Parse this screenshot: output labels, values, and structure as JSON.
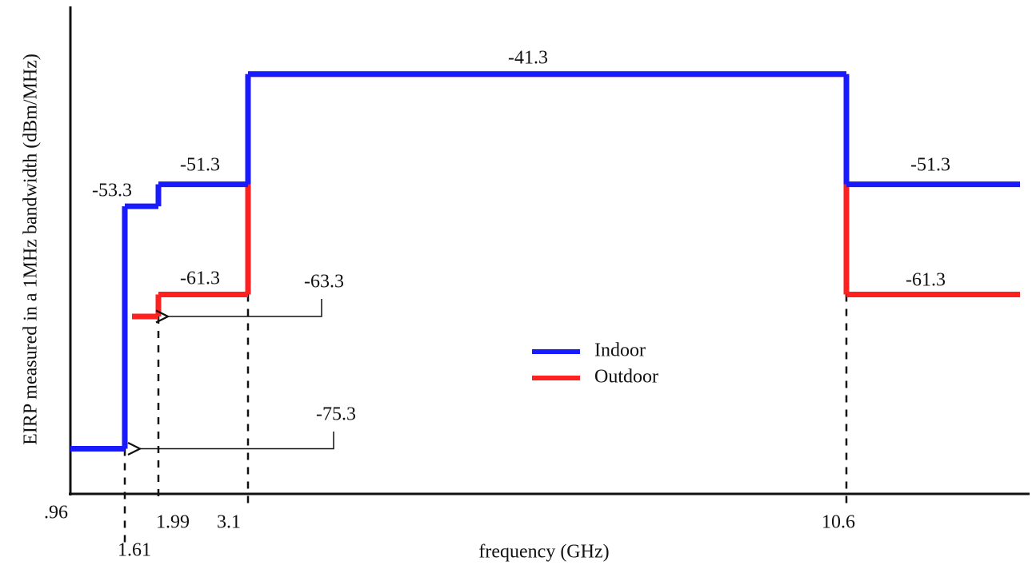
{
  "chart_data": {
    "type": "step",
    "y_label": "EIRP measured in a 1MHz bandwidth (dBm/MHz)",
    "x_label": "frequency (GHz)",
    "xticks": [
      {
        "value": 0.96,
        "label": ".96"
      },
      1.61,
      1.99,
      3.1,
      10.6
    ],
    "ylim": [
      -79.4,
      -35.3
    ],
    "series": [
      {
        "name": "Outdoor",
        "color": "#ff2020",
        "values": [
          -75.3,
          -63.3,
          -61.3,
          -41.3,
          -61.3
        ],
        "value_labels": [
          null,
          "-63.3",
          "-61.3",
          null,
          "-61.3"
        ]
      },
      {
        "name": "Indoor",
        "color": "#1a1aff",
        "values": [
          -75.3,
          -53.3,
          -51.3,
          -41.3,
          -51.3
        ],
        "value_labels": [
          "-75.3",
          "-53.3",
          "-51.3",
          "-41.3",
          "-51.3"
        ]
      }
    ]
  }
}
